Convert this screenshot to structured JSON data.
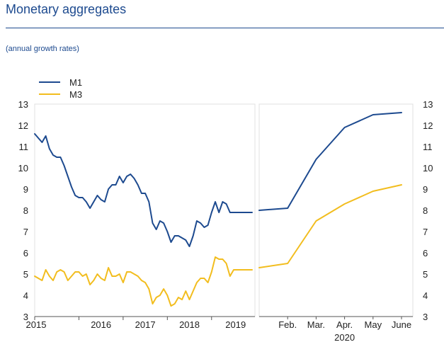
{
  "header": {
    "title": "Monetary aggregates",
    "subtitle": "(annual growth rates)"
  },
  "chart_data": {
    "type": "line",
    "title": "Monetary aggregates",
    "subtitle": "(annual growth rates)",
    "ylim": [
      3,
      13
    ],
    "y_ticks": [
      "3",
      "4",
      "5",
      "6",
      "7",
      "8",
      "9",
      "10",
      "11",
      "12",
      "13"
    ],
    "grid": false,
    "legend": "top-left",
    "colors": {
      "M1": "#1d4a8f",
      "M3": "#f2bd1e"
    },
    "panels": [
      {
        "x_ticks": [
          "2015",
          "2016",
          "2017",
          "2018",
          "2019"
        ],
        "x": [
          "2015-01",
          "2015-02",
          "2015-03",
          "2015-04",
          "2015-05",
          "2015-06",
          "2015-07",
          "2015-08",
          "2015-09",
          "2015-10",
          "2015-11",
          "2015-12",
          "2016-01",
          "2016-02",
          "2016-03",
          "2016-04",
          "2016-05",
          "2016-06",
          "2016-07",
          "2016-08",
          "2016-09",
          "2016-10",
          "2016-11",
          "2016-12",
          "2017-01",
          "2017-02",
          "2017-03",
          "2017-04",
          "2017-05",
          "2017-06",
          "2017-07",
          "2017-08",
          "2017-09",
          "2017-10",
          "2017-11",
          "2017-12",
          "2018-01",
          "2018-02",
          "2018-03",
          "2018-04",
          "2018-05",
          "2018-06",
          "2018-07",
          "2018-08",
          "2018-09",
          "2018-10",
          "2018-11",
          "2018-12",
          "2019-01",
          "2019-02",
          "2019-03",
          "2019-04",
          "2019-05",
          "2019-06",
          "2019-07",
          "2019-08",
          "2019-09",
          "2019-10",
          "2019-11",
          "2019-12"
        ],
        "series": [
          {
            "name": "M1",
            "values": [
              11.6,
              11.4,
              11.2,
              11.5,
              10.9,
              10.6,
              10.5,
              10.5,
              10.1,
              9.6,
              9.1,
              8.7,
              8.6,
              8.6,
              8.4,
              8.1,
              8.4,
              8.7,
              8.5,
              8.4,
              9.0,
              9.2,
              9.2,
              9.6,
              9.3,
              9.6,
              9.7,
              9.5,
              9.2,
              8.8,
              8.8,
              8.4,
              7.4,
              7.1,
              7.5,
              7.4,
              7.0,
              6.5,
              6.8,
              6.8,
              6.7,
              6.6,
              6.3,
              6.8,
              7.5,
              7.4,
              7.2,
              7.3,
              7.9,
              8.4,
              7.9,
              8.4,
              8.3,
              7.9,
              7.9,
              7.9,
              7.9,
              7.9,
              7.9,
              7.9
            ]
          },
          {
            "name": "M3",
            "values": [
              4.9,
              4.8,
              4.7,
              5.2,
              4.9,
              4.7,
              5.1,
              5.2,
              5.1,
              4.7,
              4.9,
              5.1,
              5.1,
              4.9,
              5.0,
              4.5,
              4.7,
              5.0,
              4.8,
              4.7,
              5.3,
              4.9,
              4.9,
              5.0,
              4.6,
              5.1,
              5.1,
              5.0,
              4.9,
              4.7,
              4.6,
              4.3,
              3.6,
              3.9,
              4.0,
              4.3,
              4.0,
              3.5,
              3.6,
              3.9,
              3.8,
              4.2,
              3.8,
              4.2,
              4.6,
              4.8,
              4.8,
              4.6,
              5.1,
              5.8,
              5.7,
              5.7,
              5.5,
              4.9,
              5.2,
              5.2,
              5.2,
              5.2,
              5.2,
              5.2
            ]
          }
        ]
      },
      {
        "x_ticks": [
          "Feb.",
          "Mar.",
          "Apr.",
          "May",
          "June"
        ],
        "x_sublabel": "2020",
        "x": [
          "2020-01",
          "2020-02",
          "2020-03",
          "2020-04",
          "2020-05",
          "2020-06"
        ],
        "series": [
          {
            "name": "M1",
            "values": [
              8.0,
              8.1,
              10.4,
              11.9,
              12.5,
              12.6
            ]
          },
          {
            "name": "M3",
            "values": [
              5.3,
              5.5,
              7.5,
              8.3,
              8.9,
              9.2
            ]
          }
        ]
      }
    ]
  }
}
